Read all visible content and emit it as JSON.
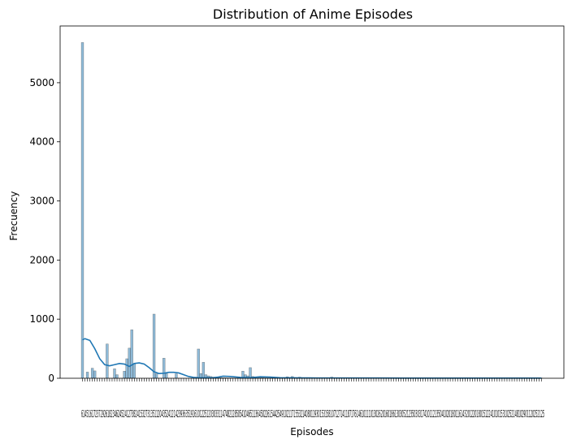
{
  "chart_data": {
    "type": "bar",
    "title": "Distribution of Anime Episodes",
    "xlabel": "Episodes",
    "ylabel": "Frecuency",
    "ylim": [
      0,
      5960
    ],
    "yticks": [
      0,
      1000,
      2000,
      3000,
      4000,
      5000
    ],
    "x_tick_text": "61451617237292618234624524127382415327313511204352412142393635191610122512030331147482128505410465113645022615442549102117155321408011930153158107127141187176146101110130262016018613030521235030317410112135041020180116143201220180151224101015310252148102901120252125",
    "n_categories": 187,
    "bar_color": "#1f77b4",
    "kde_color": "#1f77b4",
    "values": [
      5680,
      0,
      105,
      0,
      170,
      125,
      0,
      0,
      0,
      0,
      580,
      0,
      0,
      160,
      60,
      0,
      0,
      120,
      330,
      510,
      820,
      250,
      0,
      0,
      0,
      0,
      0,
      0,
      0,
      1085,
      75,
      0,
      0,
      340,
      80,
      0,
      0,
      0,
      75,
      0,
      0,
      0,
      0,
      0,
      0,
      0,
      0,
      495,
      80,
      270,
      60,
      40,
      30,
      20,
      15,
      10,
      10,
      8,
      8,
      6,
      6,
      5,
      5,
      5,
      5,
      120,
      60,
      40,
      180,
      30,
      20,
      15,
      12,
      10,
      8,
      7,
      6,
      5,
      5,
      5,
      4,
      4,
      4,
      25,
      10,
      30,
      8,
      6,
      20,
      5,
      5,
      4,
      4,
      4,
      3,
      3,
      3,
      3,
      3,
      3,
      3,
      20,
      3,
      3,
      2,
      2,
      2,
      2,
      2,
      2,
      2,
      2,
      2,
      2,
      2,
      2,
      2,
      2,
      2,
      2,
      2,
      2,
      2,
      2,
      2,
      2,
      2,
      2,
      2,
      2,
      2,
      2,
      2,
      2,
      2,
      2,
      2,
      2,
      2,
      2,
      2,
      2,
      2,
      2,
      2,
      2,
      2,
      2,
      2,
      2,
      2,
      2,
      2,
      2,
      2,
      2,
      2,
      2,
      2,
      2,
      2,
      2,
      2,
      2,
      2,
      2,
      2,
      2,
      2,
      2,
      2,
      2,
      2,
      2,
      2,
      2,
      2,
      2,
      2,
      2,
      2,
      2,
      2,
      2,
      2,
      2,
      2
    ],
    "kde_x": [
      0,
      1,
      3,
      5,
      7,
      9,
      11,
      13,
      15,
      17,
      19,
      21,
      23,
      25,
      27,
      29,
      31,
      33,
      35,
      37,
      39,
      41,
      43,
      45,
      47,
      49,
      51,
      53,
      55,
      57,
      60,
      64,
      68,
      72,
      76,
      80,
      85,
      90,
      95,
      100,
      110,
      120,
      130,
      140,
      150,
      160,
      170,
      180,
      186
    ],
    "kde_y": [
      650,
      670,
      640,
      500,
      330,
      230,
      210,
      230,
      250,
      240,
      200,
      250,
      260,
      240,
      180,
      110,
      80,
      85,
      100,
      100,
      90,
      60,
      30,
      15,
      10,
      8,
      8,
      10,
      20,
      35,
      30,
      15,
      10,
      25,
      20,
      10,
      8,
      6,
      5,
      5,
      4,
      4,
      3,
      3,
      3,
      3,
      3,
      3,
      3
    ]
  }
}
